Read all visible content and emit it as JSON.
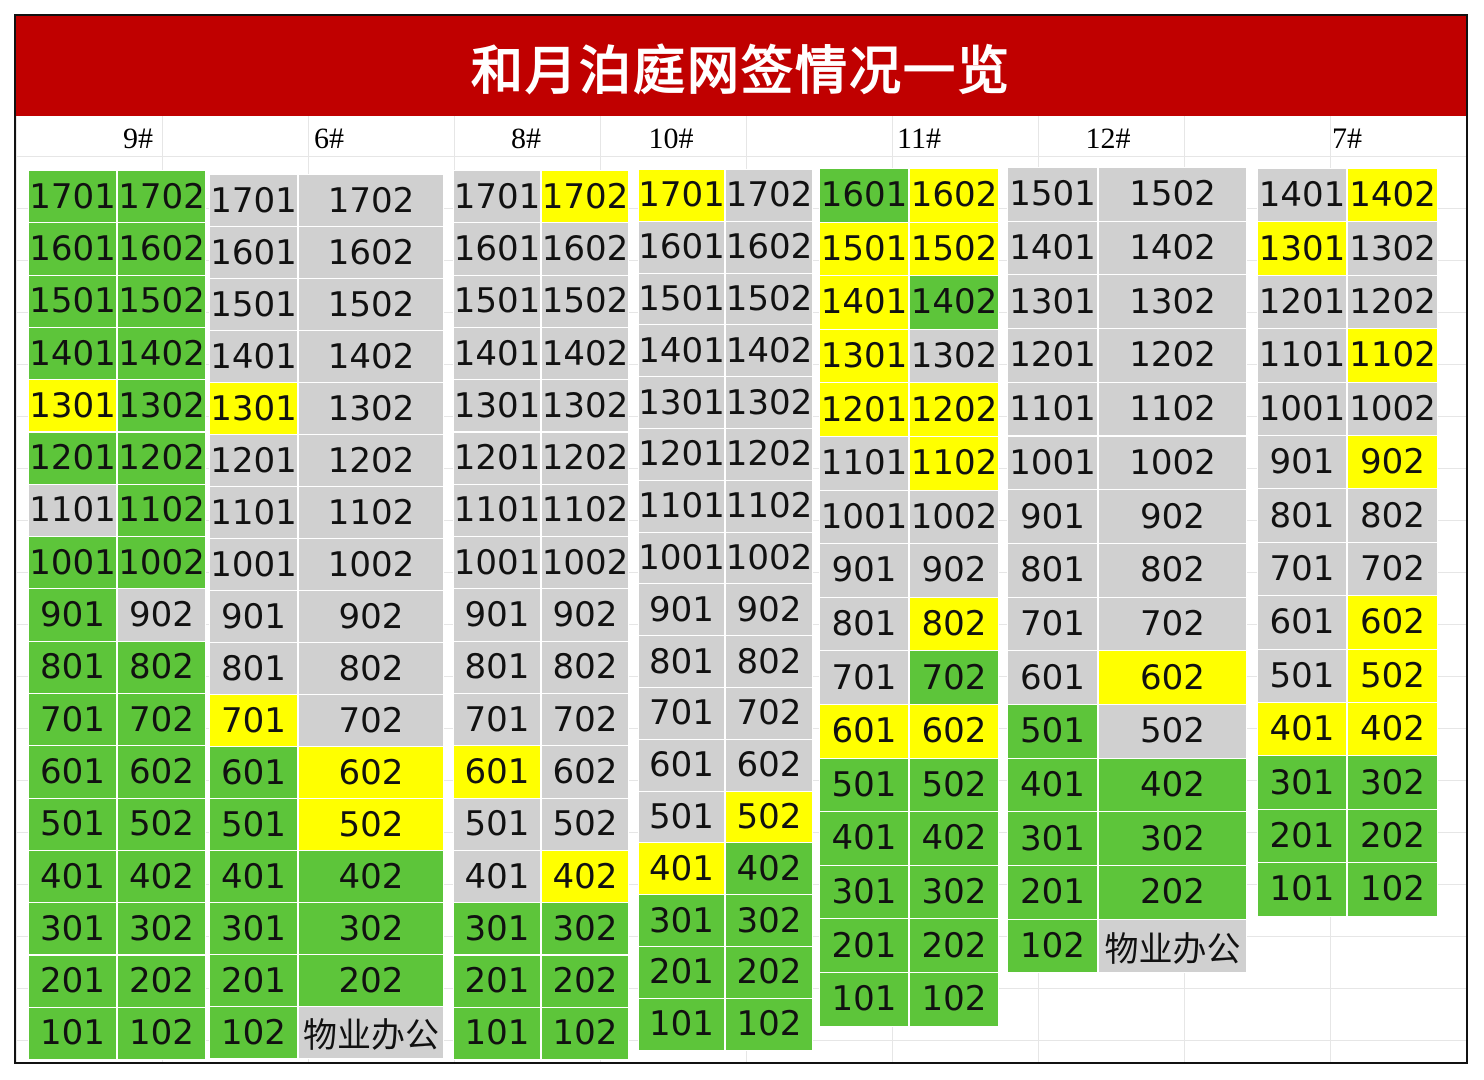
{
  "title": "和月泊庭网签情况一览",
  "colors": {
    "title_bar": "#c00000",
    "green": "#5dc53a",
    "yellow": "#ffff00",
    "grey": "#d0d0d0"
  },
  "legend_note": "",
  "buildings": [
    {
      "label": "9#",
      "rows": [
        [
          {
            "no": "1701",
            "s": "g"
          },
          {
            "no": "1702",
            "s": "g"
          }
        ],
        [
          {
            "no": "1601",
            "s": "g"
          },
          {
            "no": "1602",
            "s": "g"
          }
        ],
        [
          {
            "no": "1501",
            "s": "g"
          },
          {
            "no": "1502",
            "s": "g"
          }
        ],
        [
          {
            "no": "1401",
            "s": "g"
          },
          {
            "no": "1402",
            "s": "g"
          }
        ],
        [
          {
            "no": "1301",
            "s": "y"
          },
          {
            "no": "1302",
            "s": "g"
          }
        ],
        [
          {
            "no": "1201",
            "s": "g"
          },
          {
            "no": "1202",
            "s": "g"
          }
        ],
        [
          {
            "no": "1101",
            "s": "s"
          },
          {
            "no": "1102",
            "s": "g"
          }
        ],
        [
          {
            "no": "1001",
            "s": "g"
          },
          {
            "no": "1002",
            "s": "g"
          }
        ],
        [
          {
            "no": "901",
            "s": "g"
          },
          {
            "no": "902",
            "s": "s"
          }
        ],
        [
          {
            "no": "801",
            "s": "g"
          },
          {
            "no": "802",
            "s": "g"
          }
        ],
        [
          {
            "no": "701",
            "s": "g"
          },
          {
            "no": "702",
            "s": "g"
          }
        ],
        [
          {
            "no": "601",
            "s": "g"
          },
          {
            "no": "602",
            "s": "g"
          }
        ],
        [
          {
            "no": "501",
            "s": "g"
          },
          {
            "no": "502",
            "s": "g"
          }
        ],
        [
          {
            "no": "401",
            "s": "g"
          },
          {
            "no": "402",
            "s": "g"
          }
        ],
        [
          {
            "no": "301",
            "s": "g"
          },
          {
            "no": "302",
            "s": "g"
          }
        ],
        [
          {
            "no": "201",
            "s": "g"
          },
          {
            "no": "202",
            "s": "g"
          }
        ],
        [
          {
            "no": "101",
            "s": "g"
          },
          {
            "no": "102",
            "s": "g"
          }
        ]
      ]
    },
    {
      "label": "6#",
      "rows": [
        [
          {
            "no": "1701",
            "s": "s"
          },
          {
            "no": "1702",
            "s": "s"
          }
        ],
        [
          {
            "no": "1601",
            "s": "s"
          },
          {
            "no": "1602",
            "s": "s"
          }
        ],
        [
          {
            "no": "1501",
            "s": "s"
          },
          {
            "no": "1502",
            "s": "s"
          }
        ],
        [
          {
            "no": "1401",
            "s": "s"
          },
          {
            "no": "1402",
            "s": "s"
          }
        ],
        [
          {
            "no": "1301",
            "s": "y"
          },
          {
            "no": "1302",
            "s": "s"
          }
        ],
        [
          {
            "no": "1201",
            "s": "s"
          },
          {
            "no": "1202",
            "s": "s"
          }
        ],
        [
          {
            "no": "1101",
            "s": "s"
          },
          {
            "no": "1102",
            "s": "s"
          }
        ],
        [
          {
            "no": "1001",
            "s": "s"
          },
          {
            "no": "1002",
            "s": "s"
          }
        ],
        [
          {
            "no": "901",
            "s": "s"
          },
          {
            "no": "902",
            "s": "s"
          }
        ],
        [
          {
            "no": "801",
            "s": "s"
          },
          {
            "no": "802",
            "s": "s"
          }
        ],
        [
          {
            "no": "701",
            "s": "y"
          },
          {
            "no": "702",
            "s": "s"
          }
        ],
        [
          {
            "no": "601",
            "s": "g"
          },
          {
            "no": "602",
            "s": "y"
          }
        ],
        [
          {
            "no": "501",
            "s": "g"
          },
          {
            "no": "502",
            "s": "y"
          }
        ],
        [
          {
            "no": "401",
            "s": "g"
          },
          {
            "no": "402",
            "s": "g"
          }
        ],
        [
          {
            "no": "301",
            "s": "g"
          },
          {
            "no": "302",
            "s": "g"
          }
        ],
        [
          {
            "no": "201",
            "s": "g"
          },
          {
            "no": "202",
            "s": "g"
          }
        ],
        [
          {
            "no": "102",
            "s": "g"
          },
          {
            "no": "物业办公",
            "s": "s"
          }
        ]
      ]
    },
    {
      "label": "8#",
      "rows": [
        [
          {
            "no": "1701",
            "s": "s"
          },
          {
            "no": "1702",
            "s": "y"
          }
        ],
        [
          {
            "no": "1601",
            "s": "s"
          },
          {
            "no": "1602",
            "s": "s"
          }
        ],
        [
          {
            "no": "1501",
            "s": "s"
          },
          {
            "no": "1502",
            "s": "s"
          }
        ],
        [
          {
            "no": "1401",
            "s": "s"
          },
          {
            "no": "1402",
            "s": "s"
          }
        ],
        [
          {
            "no": "1301",
            "s": "s"
          },
          {
            "no": "1302",
            "s": "s"
          }
        ],
        [
          {
            "no": "1201",
            "s": "s"
          },
          {
            "no": "1202",
            "s": "s"
          }
        ],
        [
          {
            "no": "1101",
            "s": "s"
          },
          {
            "no": "1102",
            "s": "s"
          }
        ],
        [
          {
            "no": "1001",
            "s": "s"
          },
          {
            "no": "1002",
            "s": "s"
          }
        ],
        [
          {
            "no": "901",
            "s": "s"
          },
          {
            "no": "902",
            "s": "s"
          }
        ],
        [
          {
            "no": "801",
            "s": "s"
          },
          {
            "no": "802",
            "s": "s"
          }
        ],
        [
          {
            "no": "701",
            "s": "s"
          },
          {
            "no": "702",
            "s": "s"
          }
        ],
        [
          {
            "no": "601",
            "s": "y"
          },
          {
            "no": "602",
            "s": "s"
          }
        ],
        [
          {
            "no": "501",
            "s": "s"
          },
          {
            "no": "502",
            "s": "s"
          }
        ],
        [
          {
            "no": "401",
            "s": "s"
          },
          {
            "no": "402",
            "s": "y"
          }
        ],
        [
          {
            "no": "301",
            "s": "g"
          },
          {
            "no": "302",
            "s": "g"
          }
        ],
        [
          {
            "no": "201",
            "s": "g"
          },
          {
            "no": "202",
            "s": "g"
          }
        ],
        [
          {
            "no": "101",
            "s": "g"
          },
          {
            "no": "102",
            "s": "g"
          }
        ]
      ]
    },
    {
      "label": "10#",
      "rows": [
        [
          {
            "no": "1701",
            "s": "y"
          },
          {
            "no": "1702",
            "s": "s"
          }
        ],
        [
          {
            "no": "1601",
            "s": "s"
          },
          {
            "no": "1602",
            "s": "s"
          }
        ],
        [
          {
            "no": "1501",
            "s": "s"
          },
          {
            "no": "1502",
            "s": "s"
          }
        ],
        [
          {
            "no": "1401",
            "s": "s"
          },
          {
            "no": "1402",
            "s": "s"
          }
        ],
        [
          {
            "no": "1301",
            "s": "s"
          },
          {
            "no": "1302",
            "s": "s"
          }
        ],
        [
          {
            "no": "1201",
            "s": "s"
          },
          {
            "no": "1202",
            "s": "s"
          }
        ],
        [
          {
            "no": "1101",
            "s": "s"
          },
          {
            "no": "1102",
            "s": "s"
          }
        ],
        [
          {
            "no": "1001",
            "s": "s"
          },
          {
            "no": "1002",
            "s": "s"
          }
        ],
        [
          {
            "no": "901",
            "s": "s"
          },
          {
            "no": "902",
            "s": "s"
          }
        ],
        [
          {
            "no": "801",
            "s": "s"
          },
          {
            "no": "802",
            "s": "s"
          }
        ],
        [
          {
            "no": "701",
            "s": "s"
          },
          {
            "no": "702",
            "s": "s"
          }
        ],
        [
          {
            "no": "601",
            "s": "s"
          },
          {
            "no": "602",
            "s": "s"
          }
        ],
        [
          {
            "no": "501",
            "s": "s"
          },
          {
            "no": "502",
            "s": "y"
          }
        ],
        [
          {
            "no": "401",
            "s": "y"
          },
          {
            "no": "402",
            "s": "g"
          }
        ],
        [
          {
            "no": "301",
            "s": "g"
          },
          {
            "no": "302",
            "s": "g"
          }
        ],
        [
          {
            "no": "201",
            "s": "g"
          },
          {
            "no": "202",
            "s": "g"
          }
        ],
        [
          {
            "no": "101",
            "s": "g"
          },
          {
            "no": "102",
            "s": "g"
          }
        ]
      ]
    },
    {
      "label": "11#",
      "rows": [
        [
          {
            "no": "1601",
            "s": "g"
          },
          {
            "no": "1602",
            "s": "y"
          }
        ],
        [
          {
            "no": "1501",
            "s": "y"
          },
          {
            "no": "1502",
            "s": "y"
          }
        ],
        [
          {
            "no": "1401",
            "s": "y"
          },
          {
            "no": "1402",
            "s": "g"
          }
        ],
        [
          {
            "no": "1301",
            "s": "y"
          },
          {
            "no": "1302",
            "s": "s"
          }
        ],
        [
          {
            "no": "1201",
            "s": "y"
          },
          {
            "no": "1202",
            "s": "y"
          }
        ],
        [
          {
            "no": "1101",
            "s": "s"
          },
          {
            "no": "1102",
            "s": "y"
          }
        ],
        [
          {
            "no": "1001",
            "s": "s"
          },
          {
            "no": "1002",
            "s": "s"
          }
        ],
        [
          {
            "no": "901",
            "s": "s"
          },
          {
            "no": "902",
            "s": "s"
          }
        ],
        [
          {
            "no": "801",
            "s": "s"
          },
          {
            "no": "802",
            "s": "y"
          }
        ],
        [
          {
            "no": "701",
            "s": "s"
          },
          {
            "no": "702",
            "s": "g"
          }
        ],
        [
          {
            "no": "601",
            "s": "y"
          },
          {
            "no": "602",
            "s": "y"
          }
        ],
        [
          {
            "no": "501",
            "s": "g"
          },
          {
            "no": "502",
            "s": "g"
          }
        ],
        [
          {
            "no": "401",
            "s": "g"
          },
          {
            "no": "402",
            "s": "g"
          }
        ],
        [
          {
            "no": "301",
            "s": "g"
          },
          {
            "no": "302",
            "s": "g"
          }
        ],
        [
          {
            "no": "201",
            "s": "g"
          },
          {
            "no": "202",
            "s": "g"
          }
        ],
        [
          {
            "no": "101",
            "s": "g"
          },
          {
            "no": "102",
            "s": "g"
          }
        ]
      ]
    },
    {
      "label": "12#",
      "rows": [
        [
          {
            "no": "1501",
            "s": "s"
          },
          {
            "no": "1502",
            "s": "s"
          }
        ],
        [
          {
            "no": "1401",
            "s": "s"
          },
          {
            "no": "1402",
            "s": "s"
          }
        ],
        [
          {
            "no": "1301",
            "s": "s"
          },
          {
            "no": "1302",
            "s": "s"
          }
        ],
        [
          {
            "no": "1201",
            "s": "s"
          },
          {
            "no": "1202",
            "s": "s"
          }
        ],
        [
          {
            "no": "1101",
            "s": "s"
          },
          {
            "no": "1102",
            "s": "s"
          }
        ],
        [
          {
            "no": "1001",
            "s": "s"
          },
          {
            "no": "1002",
            "s": "s"
          }
        ],
        [
          {
            "no": "901",
            "s": "s"
          },
          {
            "no": "902",
            "s": "s"
          }
        ],
        [
          {
            "no": "801",
            "s": "s"
          },
          {
            "no": "802",
            "s": "s"
          }
        ],
        [
          {
            "no": "701",
            "s": "s"
          },
          {
            "no": "702",
            "s": "s"
          }
        ],
        [
          {
            "no": "601",
            "s": "s"
          },
          {
            "no": "602",
            "s": "y"
          }
        ],
        [
          {
            "no": "501",
            "s": "g"
          },
          {
            "no": "502",
            "s": "s"
          }
        ],
        [
          {
            "no": "401",
            "s": "g"
          },
          {
            "no": "402",
            "s": "g"
          }
        ],
        [
          {
            "no": "301",
            "s": "g"
          },
          {
            "no": "302",
            "s": "g"
          }
        ],
        [
          {
            "no": "201",
            "s": "g"
          },
          {
            "no": "202",
            "s": "g"
          }
        ],
        [
          {
            "no": "102",
            "s": "g"
          },
          {
            "no": "物业办公",
            "s": "s"
          }
        ]
      ]
    },
    {
      "label": "7#",
      "rows": [
        [
          {
            "no": "1401",
            "s": "s"
          },
          {
            "no": "1402",
            "s": "y"
          }
        ],
        [
          {
            "no": "1301",
            "s": "y"
          },
          {
            "no": "1302",
            "s": "s"
          }
        ],
        [
          {
            "no": "1201",
            "s": "s"
          },
          {
            "no": "1202",
            "s": "s"
          }
        ],
        [
          {
            "no": "1101",
            "s": "s"
          },
          {
            "no": "1102",
            "s": "y"
          }
        ],
        [
          {
            "no": "1001",
            "s": "s"
          },
          {
            "no": "1002",
            "s": "s"
          }
        ],
        [
          {
            "no": "901",
            "s": "s"
          },
          {
            "no": "902",
            "s": "y"
          }
        ],
        [
          {
            "no": "801",
            "s": "s"
          },
          {
            "no": "802",
            "s": "s"
          }
        ],
        [
          {
            "no": "701",
            "s": "s"
          },
          {
            "no": "702",
            "s": "s"
          }
        ],
        [
          {
            "no": "601",
            "s": "s"
          },
          {
            "no": "602",
            "s": "y"
          }
        ],
        [
          {
            "no": "501",
            "s": "s"
          },
          {
            "no": "502",
            "s": "y"
          }
        ],
        [
          {
            "no": "401",
            "s": "y"
          },
          {
            "no": "402",
            "s": "y"
          }
        ],
        [
          {
            "no": "301",
            "s": "g"
          },
          {
            "no": "302",
            "s": "g"
          }
        ],
        [
          {
            "no": "201",
            "s": "g"
          },
          {
            "no": "202",
            "s": "g"
          }
        ],
        [
          {
            "no": "101",
            "s": "g"
          },
          {
            "no": "102",
            "s": "g"
          }
        ]
      ]
    }
  ]
}
